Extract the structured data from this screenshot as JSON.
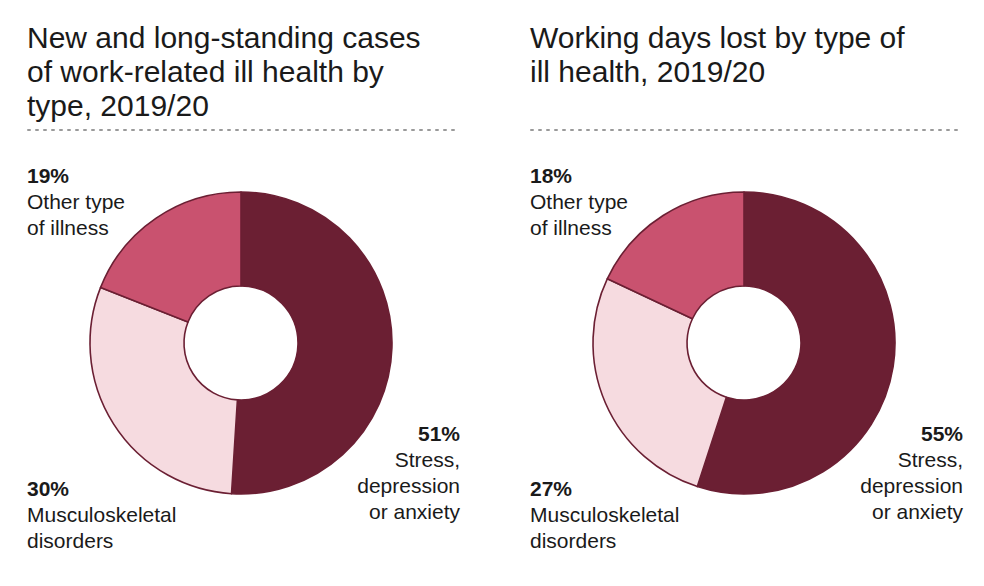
{
  "chart_data": [
    {
      "type": "donut",
      "title": "New and long-standing cases of work-related ill health by type, 2019/20",
      "categories": [
        "Stress, depression or anxiety",
        "Musculoskeletal disorders",
        "Other type of illness"
      ],
      "values": [
        51,
        30,
        19
      ],
      "value_labels": [
        "51%",
        "30%",
        "19%"
      ],
      "colors": [
        "#6b1f33",
        "#f6dbe0",
        "#c9526f"
      ],
      "data_labels": true
    },
    {
      "type": "donut",
      "title": "Working days lost by type of ill health, 2019/20",
      "categories": [
        "Stress, depression or anxiety",
        "Musculoskeletal disorders",
        "Other type of illness"
      ],
      "values": [
        55,
        27,
        18
      ],
      "value_labels": [
        "55%",
        "27%",
        "18%"
      ],
      "colors": [
        "#6b1f33",
        "#f6dbe0",
        "#c9526f"
      ],
      "data_labels": true
    }
  ]
}
